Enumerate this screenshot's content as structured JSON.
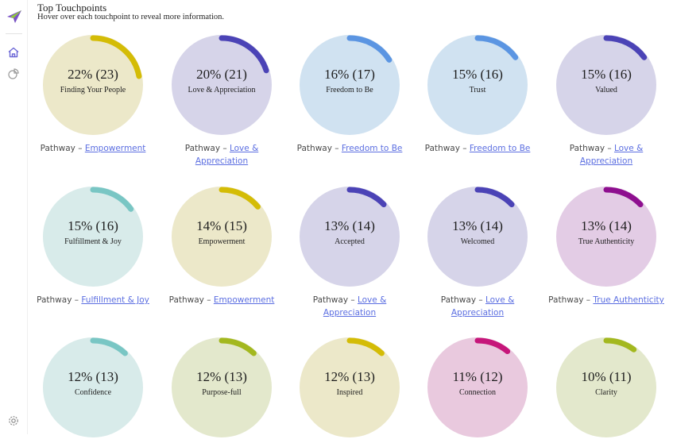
{
  "header": {
    "title": "Top Touchpoints",
    "subtitle": "Hover over each touchpoint to reveal more information."
  },
  "sidebar": {
    "icons": [
      "paper-plane-logo-icon",
      "home-icon",
      "chart-pie-icon",
      "settings-icon"
    ]
  },
  "pathway_prefix": "Pathway – ",
  "touchpoints": [
    {
      "pct": "22% (23)",
      "name": "Finding Your People",
      "fraction": 0.22,
      "fill": "#ece8c9",
      "arc": "#d4bc06",
      "pathway": "Empowerment"
    },
    {
      "pct": "20% (21)",
      "name": "Love & Appreciation",
      "fraction": 0.2,
      "fill": "#d6d4e9",
      "arc": "#4b43b6",
      "pathway": "Love & Appreciation"
    },
    {
      "pct": "16% (17)",
      "name": "Freedom to Be",
      "fraction": 0.16,
      "fill": "#d0e2f1",
      "arc": "#5b95e2",
      "pathway": "Freedom to Be"
    },
    {
      "pct": "15% (16)",
      "name": "Trust",
      "fraction": 0.15,
      "fill": "#d0e2f1",
      "arc": "#5b95e2",
      "pathway": "Freedom to Be"
    },
    {
      "pct": "15% (16)",
      "name": "Valued",
      "fraction": 0.15,
      "fill": "#d6d4e9",
      "arc": "#4b43b6",
      "pathway": "Love & Appreciation"
    },
    {
      "pct": "15% (16)",
      "name": "Fulfillment & Joy",
      "fraction": 0.15,
      "fill": "#d8ebea",
      "arc": "#79c6c4",
      "pathway": "Fulfillment & Joy"
    },
    {
      "pct": "14% (15)",
      "name": "Empowerment",
      "fraction": 0.14,
      "fill": "#ece8c9",
      "arc": "#d4bc06",
      "pathway": "Empowerment"
    },
    {
      "pct": "13% (14)",
      "name": "Accepted",
      "fraction": 0.13,
      "fill": "#d6d4e9",
      "arc": "#4b43b6",
      "pathway": "Love & Appreciation"
    },
    {
      "pct": "13% (14)",
      "name": "Welcomed",
      "fraction": 0.13,
      "fill": "#d6d4e9",
      "arc": "#4b43b6",
      "pathway": "Love & Appreciation"
    },
    {
      "pct": "13% (14)",
      "name": "True Authenticity",
      "fraction": 0.13,
      "fill": "#e3cce5",
      "arc": "#8e0f8f",
      "pathway": "True Authenticity"
    },
    {
      "pct": "12% (13)",
      "name": "Confidence",
      "fraction": 0.12,
      "fill": "#d8ebea",
      "arc": "#79c6c4",
      "pathway": ""
    },
    {
      "pct": "12% (13)",
      "name": "Purpose-full",
      "fraction": 0.12,
      "fill": "#e3e8cc",
      "arc": "#a3b81f",
      "pathway": ""
    },
    {
      "pct": "12% (13)",
      "name": "Inspired",
      "fraction": 0.12,
      "fill": "#ece8c9",
      "arc": "#d4bc06",
      "pathway": ""
    },
    {
      "pct": "11% (12)",
      "name": "Connection",
      "fraction": 0.11,
      "fill": "#e9c9de",
      "arc": "#c6167a",
      "pathway": ""
    },
    {
      "pct": "10% (11)",
      "name": "Clarity",
      "fraction": 0.1,
      "fill": "#e3e8cc",
      "arc": "#a3b81f",
      "pathway": ""
    }
  ]
}
